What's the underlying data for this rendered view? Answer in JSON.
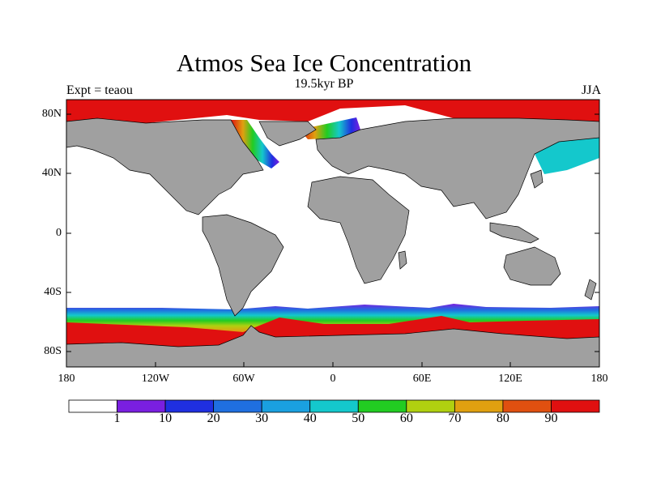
{
  "title": "Atmos Sea Ice Concentration",
  "subtitle": "19.5kyr BP",
  "left_label": "Expt = teaou",
  "right_label": "JJA",
  "y_ticks": [
    "80N",
    "40N",
    "0",
    "40S",
    "80S"
  ],
  "x_ticks": [
    "180",
    "120W",
    "60W",
    "0",
    "60E",
    "120E",
    "180"
  ],
  "colorbar": {
    "labels": [
      "1",
      "10",
      "20",
      "30",
      "40",
      "50",
      "60",
      "70",
      "80",
      "90"
    ],
    "colors": [
      "#ffffff",
      "#7a1fe0",
      "#1f2fe0",
      "#1f6fe0",
      "#1aa0e0",
      "#14c8cc",
      "#22cc22",
      "#b0d010",
      "#e0a010",
      "#e05010",
      "#e01010"
    ]
  },
  "colors": {
    "land": "#a0a0a0",
    "ocean": "#ffffff",
    "ice_max": "#e01010"
  }
}
